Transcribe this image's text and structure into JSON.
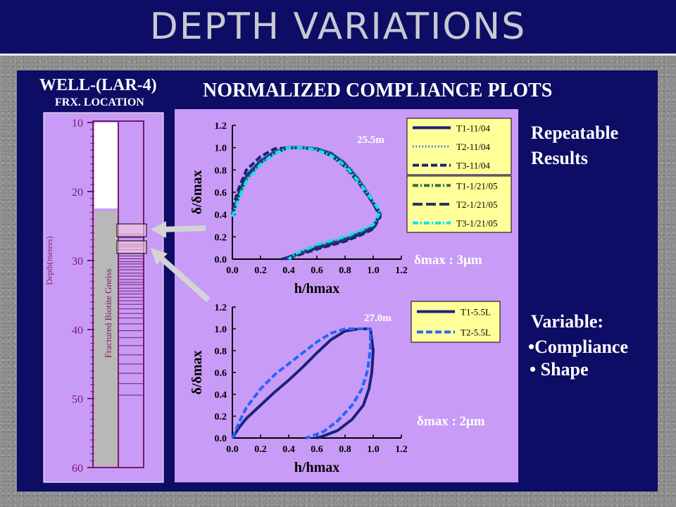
{
  "title": "DEPTH VARIATIONS",
  "well": {
    "title": "WELL-(LAR-4)",
    "subtitle": "FRX. LOCATION",
    "depth_label": "Depth(meters)",
    "rock_label": "Fractured Biotite Gneiss",
    "depth_ticks": [
      "10",
      "20",
      "30",
      "40",
      "50",
      "60"
    ]
  },
  "main_title": "NORMALIZED  COMPLIANCE PLOTS",
  "notes": {
    "top_line1": "Repeatable",
    "top_line2": "Results",
    "bottom_title": "Variable:",
    "bottom_item1": "•Compliance",
    "bottom_item2": "• Shape"
  },
  "colors": {
    "navy": "#0d0d66",
    "lavender": "#c89cf6",
    "dark_blue": "#1a237e",
    "mid_blue": "#2962ff",
    "dark_green": "#2e6b4f",
    "cyan": "#00e5ff",
    "legend_bg": "#ffff99"
  },
  "chart_data": [
    {
      "type": "line",
      "depth_label": "25.5m",
      "delta_label": "δmax : 3μm",
      "xlabel": "h/hmax",
      "ylabel": "δ/δmax",
      "xlim": [
        0,
        1.2
      ],
      "ylim": [
        0,
        1.2
      ],
      "xticks": [
        "0.0",
        "0.2",
        "0.4",
        "0.6",
        "0.8",
        "1.0",
        "1.2"
      ],
      "yticks": [
        "0.0",
        "0.2",
        "0.4",
        "0.6",
        "0.8",
        "1.0",
        "1.2"
      ],
      "legend_groups": [
        [
          "T1-11/04",
          "T2-11/04",
          "T3-11/04"
        ],
        [
          "T1-1/21/05",
          "T2-1/21/05",
          "T3-1/21/05"
        ]
      ],
      "series": [
        {
          "name": "T1-11/04",
          "color": "#1a237e",
          "style": "solid",
          "x": [
            0.0,
            0.05,
            0.1,
            0.2,
            0.3,
            0.4,
            0.5,
            0.6,
            0.7,
            0.8,
            0.9,
            1.0,
            1.05,
            1.0,
            0.9,
            0.8,
            0.6,
            0.45,
            0.38,
            0.35
          ],
          "y": [
            0.4,
            0.6,
            0.75,
            0.88,
            0.96,
            1.0,
            1.0,
            0.99,
            0.95,
            0.85,
            0.7,
            0.5,
            0.4,
            0.28,
            0.22,
            0.17,
            0.1,
            0.04,
            0.01,
            0.0
          ]
        },
        {
          "name": "T2-11/04",
          "color": "#2962ff",
          "style": "dotted",
          "x": [
            0.0,
            0.05,
            0.1,
            0.2,
            0.3,
            0.4,
            0.5,
            0.6,
            0.7,
            0.8,
            0.9,
            1.0,
            1.05,
            1.0,
            0.9,
            0.8,
            0.6,
            0.45,
            0.38
          ],
          "y": [
            0.42,
            0.62,
            0.76,
            0.89,
            0.97,
            1.0,
            1.0,
            0.99,
            0.96,
            0.87,
            0.72,
            0.52,
            0.42,
            0.3,
            0.23,
            0.18,
            0.11,
            0.05,
            0.0
          ]
        },
        {
          "name": "T3-11/04",
          "color": "#1a237e",
          "style": "dashed",
          "x": [
            0.0,
            0.05,
            0.1,
            0.2,
            0.3,
            0.4,
            0.5,
            0.6,
            0.7,
            0.8,
            0.9,
            1.0,
            1.05,
            1.0,
            0.9,
            0.8,
            0.6,
            0.45,
            0.38
          ],
          "y": [
            0.45,
            0.65,
            0.8,
            0.92,
            0.99,
            1.0,
            1.0,
            0.98,
            0.93,
            0.83,
            0.68,
            0.5,
            0.38,
            0.27,
            0.21,
            0.16,
            0.09,
            0.03,
            0.0
          ]
        },
        {
          "name": "T1-1/21/05",
          "color": "#2e6b4f",
          "style": "dashdot",
          "x": [
            0.0,
            0.05,
            0.1,
            0.2,
            0.3,
            0.4,
            0.5,
            0.6,
            0.7,
            0.8,
            0.9,
            1.0,
            1.05,
            1.0,
            0.9,
            0.8,
            0.6,
            0.45,
            0.4
          ],
          "y": [
            0.4,
            0.58,
            0.72,
            0.86,
            0.95,
            1.0,
            1.0,
            0.99,
            0.95,
            0.86,
            0.71,
            0.52,
            0.42,
            0.3,
            0.24,
            0.19,
            0.12,
            0.05,
            0.0
          ]
        },
        {
          "name": "T2-1/21/05",
          "color": "#1f3b57",
          "style": "longdash",
          "x": [
            0.0,
            0.05,
            0.1,
            0.2,
            0.3,
            0.4,
            0.5,
            0.6,
            0.7,
            0.8,
            0.9,
            1.0,
            1.05,
            1.0,
            0.9,
            0.8,
            0.6,
            0.45,
            0.4
          ],
          "y": [
            0.41,
            0.6,
            0.74,
            0.87,
            0.96,
            1.0,
            1.0,
            0.98,
            0.94,
            0.85,
            0.7,
            0.51,
            0.41,
            0.29,
            0.23,
            0.18,
            0.11,
            0.04,
            0.0
          ]
        },
        {
          "name": "T3-1/21/05",
          "color": "#00e5ff",
          "style": "dashdot",
          "x": [
            0.0,
            0.05,
            0.1,
            0.2,
            0.3,
            0.4,
            0.5,
            0.6,
            0.7,
            0.8,
            0.9,
            1.0,
            1.05,
            1.0,
            0.9,
            0.8,
            0.6,
            0.45,
            0.4
          ],
          "y": [
            0.38,
            0.56,
            0.7,
            0.85,
            0.95,
            1.0,
            1.0,
            0.98,
            0.93,
            0.84,
            0.69,
            0.52,
            0.42,
            0.31,
            0.25,
            0.2,
            0.13,
            0.05,
            0.0
          ]
        }
      ]
    },
    {
      "type": "line",
      "depth_label": "27.0m",
      "delta_label": "δmax : 2μm",
      "xlabel": "h/hmax",
      "ylabel": "δ/δmax",
      "xlim": [
        0,
        1.2
      ],
      "ylim": [
        0,
        1.2
      ],
      "xticks": [
        "0.0",
        "0.2",
        "0.4",
        "0.6",
        "0.8",
        "1.0",
        "1.2"
      ],
      "yticks": [
        "0.0",
        "0.2",
        "0.4",
        "0.6",
        "0.8",
        "1.0",
        "1.2"
      ],
      "legend_groups": [
        [
          "T1-5.5L",
          "T2-5.5L"
        ]
      ],
      "series": [
        {
          "name": "T1-5.5L",
          "color": "#1a237e",
          "style": "solid",
          "x": [
            0.0,
            0.05,
            0.1,
            0.2,
            0.3,
            0.4,
            0.5,
            0.6,
            0.7,
            0.8,
            0.9,
            0.98,
            1.0,
            0.99,
            0.97,
            0.93,
            0.85,
            0.75,
            0.65,
            0.6
          ],
          "y": [
            0.0,
            0.1,
            0.18,
            0.3,
            0.42,
            0.53,
            0.65,
            0.78,
            0.9,
            0.98,
            1.0,
            1.0,
            0.8,
            0.6,
            0.45,
            0.3,
            0.17,
            0.07,
            0.02,
            0.0
          ]
        },
        {
          "name": "T2-5.5L",
          "color": "#2962ff",
          "style": "dashed",
          "x": [
            0.0,
            0.05,
            0.1,
            0.2,
            0.3,
            0.4,
            0.5,
            0.6,
            0.7,
            0.8,
            0.9,
            0.98,
            0.98,
            0.96,
            0.92,
            0.85,
            0.75,
            0.65,
            0.55,
            0.52
          ],
          "y": [
            0.0,
            0.15,
            0.28,
            0.45,
            0.58,
            0.68,
            0.78,
            0.88,
            0.96,
            1.0,
            1.0,
            1.0,
            0.82,
            0.62,
            0.45,
            0.3,
            0.16,
            0.06,
            0.01,
            0.0
          ]
        }
      ]
    }
  ]
}
